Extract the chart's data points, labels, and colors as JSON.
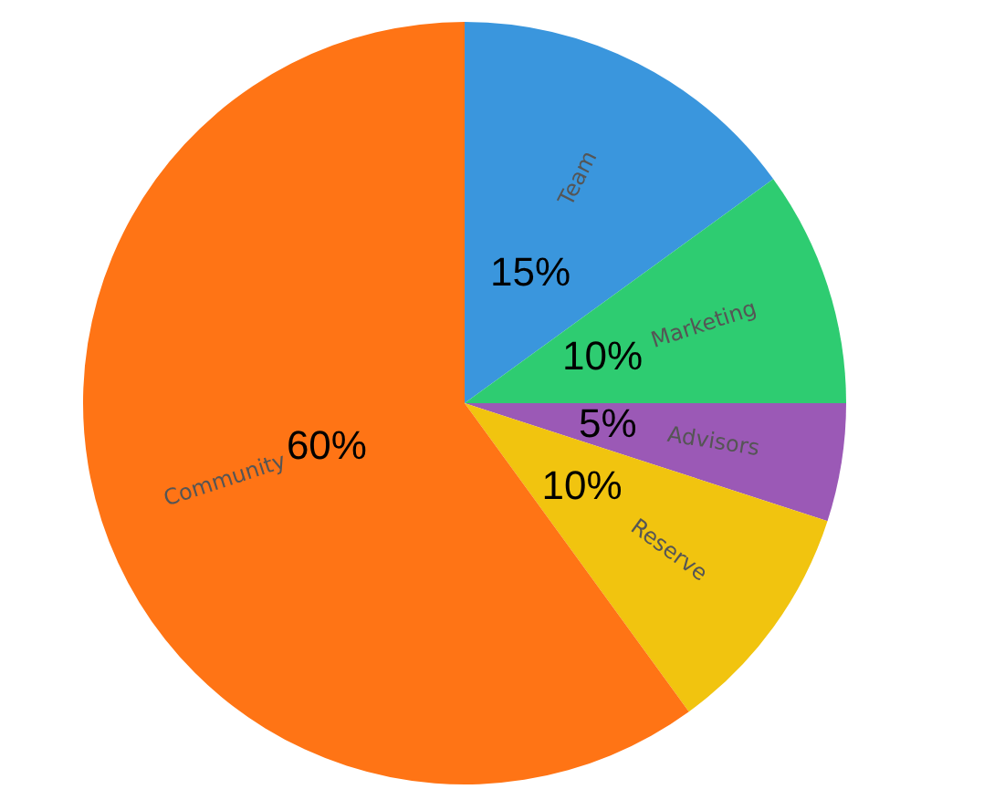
{
  "chart_data": {
    "type": "pie",
    "categories": [
      "Team",
      "Marketing",
      "Advisors",
      "Reserve",
      "Community"
    ],
    "values": [
      15,
      10,
      5,
      10,
      60
    ],
    "value_labels": [
      "15%",
      "10%",
      "5%",
      "10%",
      "60%"
    ],
    "colors": [
      "#3a96dd",
      "#2ecc71",
      "#9b59b6",
      "#f1c40f",
      "#ff7415"
    ],
    "legend": false
  }
}
